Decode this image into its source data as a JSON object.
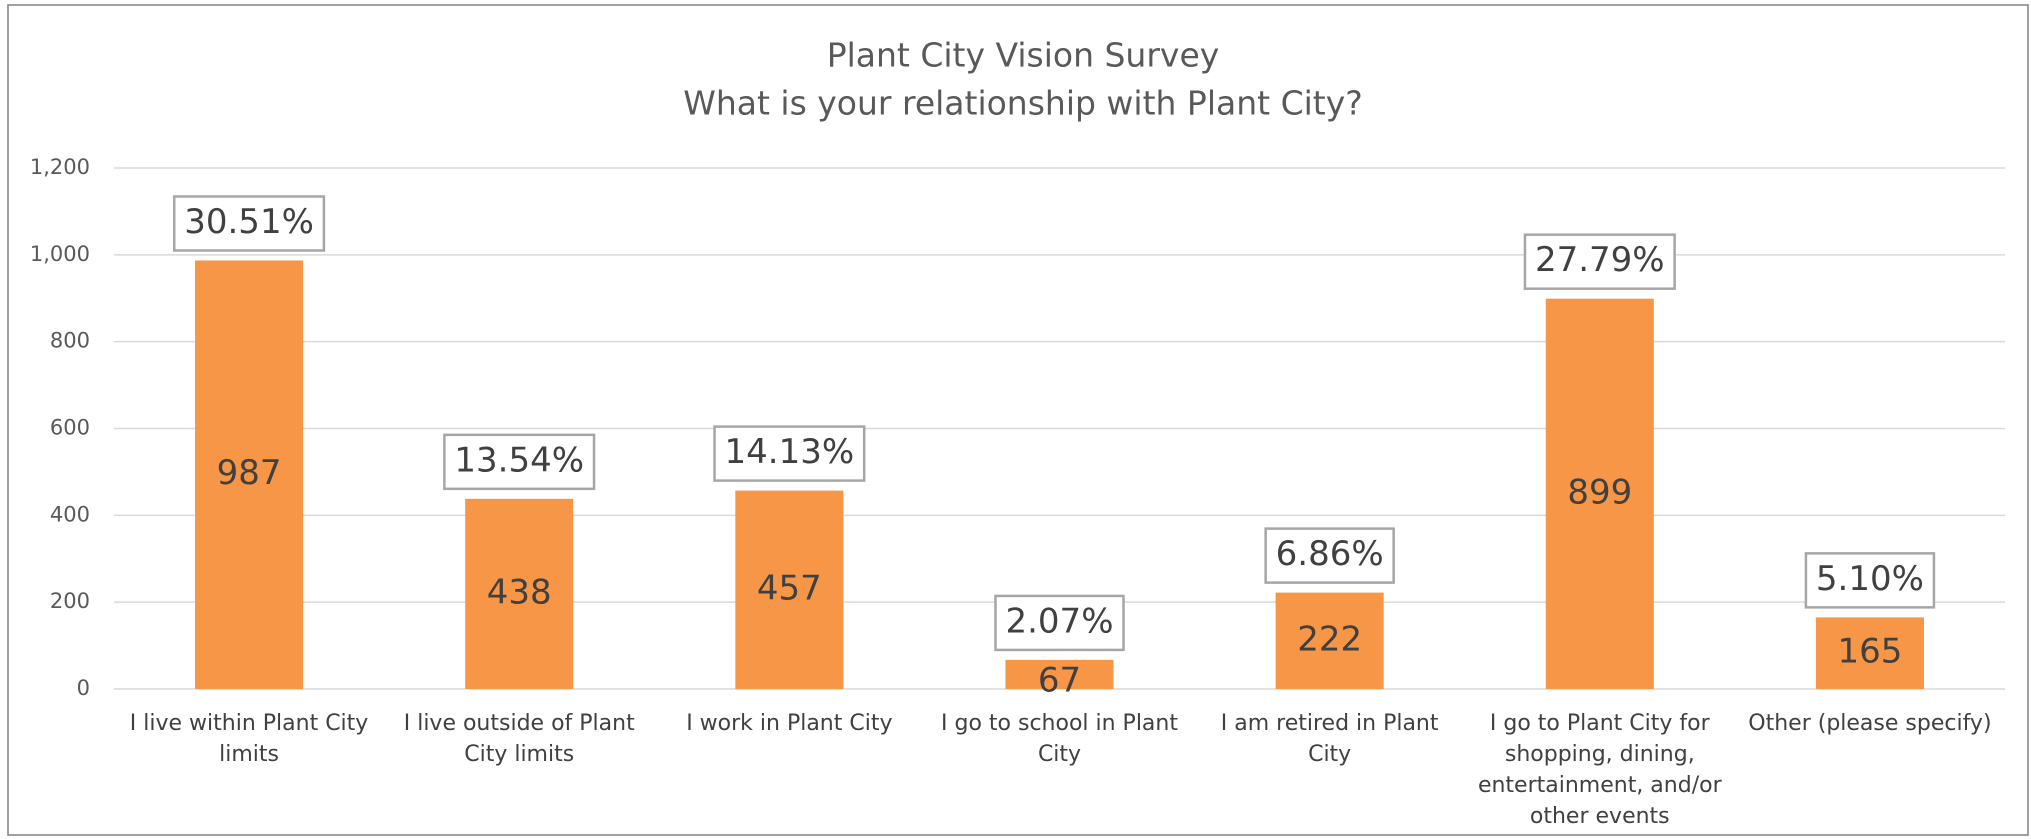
{
  "chart_data": {
    "type": "bar",
    "title": "Plant City Vision Survey",
    "subtitle": "What is your relationship with Plant City?",
    "categories": [
      "I live within Plant City limits",
      "I live outside of Plant City limits",
      "I work in Plant City",
      "I go to school in Plant City",
      "I am retired in Plant City",
      "I go to Plant City for shopping, dining, entertainment, and/or other events",
      "Other (please specify)"
    ],
    "values": [
      987,
      438,
      457,
      67,
      222,
      899,
      165
    ],
    "percentages": [
      30.51,
      13.54,
      14.13,
      2.07,
      6.86,
      27.79,
      5.1
    ],
    "percentage_labels": [
      "30.51%",
      "13.54%",
      "14.13%",
      "2.07%",
      "6.86%",
      "27.79%",
      "5.10%"
    ],
    "color": "#f79646",
    "ylim": [
      0,
      1200
    ],
    "yticks": [
      0,
      200,
      400,
      600,
      800,
      {
        "value": 1000,
        "label": "1,000"
      },
      {
        "value": 1200,
        "label": "1,200"
      }
    ],
    "grid": true
  }
}
